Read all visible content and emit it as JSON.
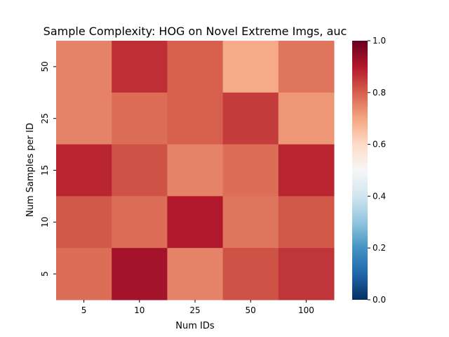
{
  "chart_data": {
    "type": "heatmap",
    "title": "Sample Complexity: HOG on Novel Extreme Imgs, auc",
    "xlabel": "Num IDs",
    "ylabel": "Num Samples per ID",
    "x_categories": [
      "5",
      "10",
      "25",
      "50",
      "100"
    ],
    "y_categories": [
      "50",
      "25",
      "15",
      "10",
      "5"
    ],
    "values": [
      [
        0.75,
        0.87,
        0.8,
        0.69,
        0.77
      ],
      [
        0.75,
        0.78,
        0.8,
        0.85,
        0.72
      ],
      [
        0.88,
        0.82,
        0.75,
        0.78,
        0.88
      ],
      [
        0.81,
        0.78,
        0.9,
        0.77,
        0.81
      ],
      [
        0.78,
        0.92,
        0.75,
        0.82,
        0.86
      ]
    ],
    "vmin": 0.0,
    "vmax": 1.0,
    "colormap": "RdBu_r",
    "colorbar_ticks": [
      "0.0",
      "0.2",
      "0.4",
      "0.6",
      "0.8",
      "1.0"
    ]
  }
}
